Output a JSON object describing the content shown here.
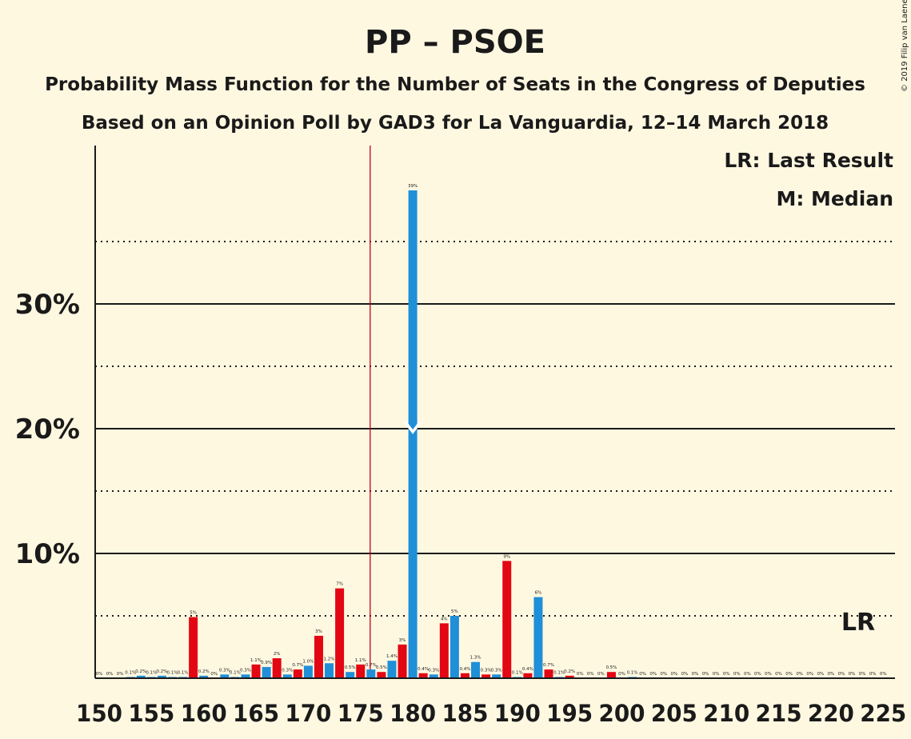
{
  "copyright": "© 2019 Filip van Laenen",
  "colors": {
    "background": "#FFF8E1",
    "pp": "#1F8FD8",
    "psoe": "#E30613",
    "lr_line": "#C0001A",
    "text": "#1a1a1a"
  },
  "chart_data": {
    "type": "bar",
    "title": "PP – PSOE",
    "subtitle1": "Probability Mass Function for the Number of Seats in the Congress of Deputies",
    "subtitle2": "Based on an Opinion Poll by GAD3 for La Vanguardia, 12–14 March 2018",
    "legend_lr": "LR: Last Result",
    "legend_median": "M: Median",
    "lr_marker": "LR",
    "xlim": [
      150,
      226
    ],
    "ylim": [
      0,
      42
    ],
    "x_ticks": [
      150,
      155,
      160,
      165,
      170,
      175,
      180,
      185,
      190,
      195,
      200,
      205,
      210,
      215,
      220,
      225
    ],
    "y_ticks_labeled": [
      {
        "value": 10,
        "label": "10%"
      },
      {
        "value": 20,
        "label": "20%"
      },
      {
        "value": 30,
        "label": "30%"
      }
    ],
    "y_gridlines_dotted": [
      5,
      15,
      25,
      35
    ],
    "last_result": 176,
    "median": 180,
    "bars": [
      {
        "x": 150,
        "value": 0,
        "label": "0%",
        "party": "pp"
      },
      {
        "x": 151,
        "value": 0,
        "label": "0%",
        "party": "pp"
      },
      {
        "x": 152,
        "value": 0,
        "label": "0%",
        "party": "pp"
      },
      {
        "x": 153,
        "value": 0.1,
        "label": "0.1%",
        "party": "pp"
      },
      {
        "x": 154,
        "value": 0.2,
        "label": "0.2%",
        "party": "pp"
      },
      {
        "x": 155,
        "value": 0.1,
        "label": "0.1%",
        "party": "pp"
      },
      {
        "x": 156,
        "value": 0.2,
        "label": "0.2%",
        "party": "pp"
      },
      {
        "x": 157,
        "value": 0.1,
        "label": "0.1%",
        "party": "pp"
      },
      {
        "x": 158,
        "value": 0.1,
        "label": "0.1%",
        "party": "pp"
      },
      {
        "x": 159,
        "value": 4.9,
        "label": "5%",
        "party": "psoe"
      },
      {
        "x": 160,
        "value": 0.2,
        "label": "0.2%",
        "party": "pp"
      },
      {
        "x": 161,
        "value": 0,
        "label": "0%",
        "party": "pp"
      },
      {
        "x": 162,
        "value": 0.3,
        "label": "0.3%",
        "party": "pp"
      },
      {
        "x": 163,
        "value": 0.1,
        "label": "0.1%",
        "party": "pp"
      },
      {
        "x": 164,
        "value": 0.3,
        "label": "0.3%",
        "party": "pp"
      },
      {
        "x": 165,
        "value": 1.1,
        "label": "1.1%",
        "party": "psoe"
      },
      {
        "x": 166,
        "value": 0.9,
        "label": "0.9%",
        "party": "pp"
      },
      {
        "x": 167,
        "value": 1.6,
        "label": "2%",
        "party": "psoe"
      },
      {
        "x": 168,
        "value": 0.3,
        "label": "0.3%",
        "party": "pp"
      },
      {
        "x": 169,
        "value": 0.7,
        "label": "0.7%",
        "party": "psoe"
      },
      {
        "x": 170,
        "value": 1.0,
        "label": "1.0%",
        "party": "pp"
      },
      {
        "x": 171,
        "value": 3.4,
        "label": "3%",
        "party": "psoe"
      },
      {
        "x": 172,
        "value": 1.2,
        "label": "1.2%",
        "party": "pp"
      },
      {
        "x": 173,
        "value": 7.2,
        "label": "7%",
        "party": "psoe"
      },
      {
        "x": 174,
        "value": 0.5,
        "label": "0.5%",
        "party": "pp"
      },
      {
        "x": 175,
        "value": 1.1,
        "label": "1.1%",
        "party": "psoe"
      },
      {
        "x": 176,
        "value": 0.7,
        "label": "0.7%",
        "party": "pp"
      },
      {
        "x": 177,
        "value": 0.5,
        "label": "0.5%",
        "party": "psoe"
      },
      {
        "x": 178,
        "value": 1.4,
        "label": "1.4%",
        "party": "pp"
      },
      {
        "x": 179,
        "value": 2.7,
        "label": "3%",
        "party": "psoe"
      },
      {
        "x": 180,
        "value": 39.1,
        "label": "39%",
        "party": "pp"
      },
      {
        "x": 181,
        "value": 0.4,
        "label": "0.4%",
        "party": "psoe"
      },
      {
        "x": 182,
        "value": 0.3,
        "label": "0.3%",
        "party": "pp"
      },
      {
        "x": 183,
        "value": 4.4,
        "label": "4%",
        "party": "psoe"
      },
      {
        "x": 184,
        "value": 5.0,
        "label": "5%",
        "party": "pp"
      },
      {
        "x": 185,
        "value": 0.4,
        "label": "0.4%",
        "party": "psoe"
      },
      {
        "x": 186,
        "value": 1.3,
        "label": "1.3%",
        "party": "pp"
      },
      {
        "x": 187,
        "value": 0.3,
        "label": "0.3%",
        "party": "psoe"
      },
      {
        "x": 188,
        "value": 0.3,
        "label": "0.3%",
        "party": "pp"
      },
      {
        "x": 189,
        "value": 9.4,
        "label": "9%",
        "party": "psoe"
      },
      {
        "x": 190,
        "value": 0.1,
        "label": "0.1%",
        "party": "pp"
      },
      {
        "x": 191,
        "value": 0.4,
        "label": "0.4%",
        "party": "psoe"
      },
      {
        "x": 192,
        "value": 6.5,
        "label": "6%",
        "party": "pp"
      },
      {
        "x": 193,
        "value": 0.7,
        "label": "0.7%",
        "party": "psoe"
      },
      {
        "x": 194,
        "value": 0.1,
        "label": "0.1%",
        "party": "pp"
      },
      {
        "x": 195,
        "value": 0.2,
        "label": "0.2%",
        "party": "psoe"
      },
      {
        "x": 196,
        "value": 0,
        "label": "0%",
        "party": "pp"
      },
      {
        "x": 197,
        "value": 0,
        "label": "0%",
        "party": "pp"
      },
      {
        "x": 198,
        "value": 0,
        "label": "0%",
        "party": "pp"
      },
      {
        "x": 199,
        "value": 0.5,
        "label": "0.5%",
        "party": "psoe"
      },
      {
        "x": 200,
        "value": 0,
        "label": "0%",
        "party": "pp"
      },
      {
        "x": 201,
        "value": 0.1,
        "label": "0.1%",
        "party": "pp"
      },
      {
        "x": 202,
        "value": 0,
        "label": "0%",
        "party": "pp"
      },
      {
        "x": 203,
        "value": 0,
        "label": "0%",
        "party": "pp"
      },
      {
        "x": 204,
        "value": 0,
        "label": "0%",
        "party": "pp"
      },
      {
        "x": 205,
        "value": 0,
        "label": "0%",
        "party": "pp"
      },
      {
        "x": 206,
        "value": 0,
        "label": "0%",
        "party": "pp"
      },
      {
        "x": 207,
        "value": 0,
        "label": "0%",
        "party": "pp"
      },
      {
        "x": 208,
        "value": 0,
        "label": "0%",
        "party": "pp"
      },
      {
        "x": 209,
        "value": 0,
        "label": "0%",
        "party": "pp"
      },
      {
        "x": 210,
        "value": 0,
        "label": "0%",
        "party": "pp"
      },
      {
        "x": 211,
        "value": 0,
        "label": "0%",
        "party": "pp"
      },
      {
        "x": 212,
        "value": 0,
        "label": "0%",
        "party": "pp"
      },
      {
        "x": 213,
        "value": 0,
        "label": "0%",
        "party": "pp"
      },
      {
        "x": 214,
        "value": 0,
        "label": "0%",
        "party": "pp"
      },
      {
        "x": 215,
        "value": 0,
        "label": "0%",
        "party": "pp"
      },
      {
        "x": 216,
        "value": 0,
        "label": "0%",
        "party": "pp"
      },
      {
        "x": 217,
        "value": 0,
        "label": "0%",
        "party": "pp"
      },
      {
        "x": 218,
        "value": 0,
        "label": "0%",
        "party": "pp"
      },
      {
        "x": 219,
        "value": 0,
        "label": "0%",
        "party": "pp"
      },
      {
        "x": 220,
        "value": 0,
        "label": "0%",
        "party": "pp"
      },
      {
        "x": 221,
        "value": 0,
        "label": "0%",
        "party": "pp"
      },
      {
        "x": 222,
        "value": 0,
        "label": "0%",
        "party": "pp"
      },
      {
        "x": 223,
        "value": 0,
        "label": "0%",
        "party": "pp"
      },
      {
        "x": 224,
        "value": 0,
        "label": "0%",
        "party": "pp"
      },
      {
        "x": 225,
        "value": 0,
        "label": "0%",
        "party": "pp"
      }
    ]
  }
}
